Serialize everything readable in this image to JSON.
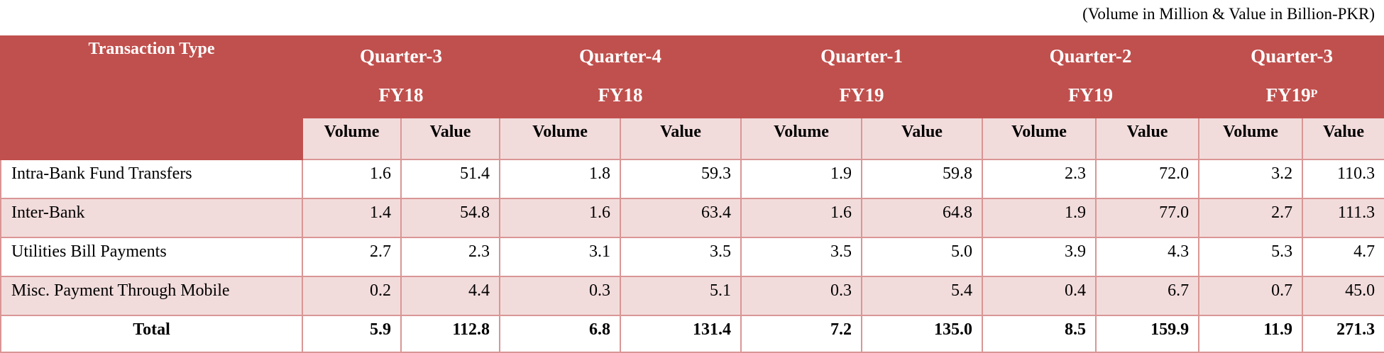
{
  "note": "(Volume in Million & Value in Billion-PKR)",
  "header": {
    "transaction_type": "Transaction Type",
    "periods": [
      {
        "quarter": "Quarter-3",
        "fy": "FY18",
        "sup": ""
      },
      {
        "quarter": "Quarter-4",
        "fy": "FY18",
        "sup": ""
      },
      {
        "quarter": "Quarter-1",
        "fy": "FY19",
        "sup": ""
      },
      {
        "quarter": "Quarter-2",
        "fy": "FY19",
        "sup": ""
      },
      {
        "quarter": "Quarter-3",
        "fy": "FY19",
        "sup": "P"
      }
    ],
    "volume_label": "Volume",
    "value_label": "Value"
  },
  "rows": [
    {
      "label": "Intra-Bank Fund Transfers",
      "cells": [
        "1.6",
        "51.4",
        "1.8",
        "59.3",
        "1.9",
        "59.8",
        "2.3",
        "72.0",
        "3.2",
        "110.3"
      ]
    },
    {
      "label": "Inter-Bank",
      "cells": [
        "1.4",
        "54.8",
        "1.6",
        "63.4",
        "1.6",
        "64.8",
        "1.9",
        "77.0",
        "2.7",
        "111.3"
      ]
    },
    {
      "label": "Utilities Bill Payments",
      "cells": [
        "2.7",
        "2.3",
        "3.1",
        "3.5",
        "3.5",
        "5.0",
        "3.9",
        "4.3",
        "5.3",
        "4.7"
      ]
    },
    {
      "label": "Misc. Payment Through Mobile",
      "cells": [
        "0.2",
        "4.4",
        "0.3",
        "5.1",
        "0.3",
        "5.4",
        "0.4",
        "6.7",
        "0.7",
        "45.0"
      ]
    }
  ],
  "total": {
    "label": "Total",
    "cells": [
      "5.9",
      "112.8",
      "6.8",
      "131.4",
      "7.2",
      "135.0",
      "8.5",
      "159.9",
      "11.9",
      "271.3"
    ]
  },
  "colors": {
    "header_bg": "#c0504d",
    "band_bg": "#f2dcdb",
    "border": "#d99695"
  }
}
